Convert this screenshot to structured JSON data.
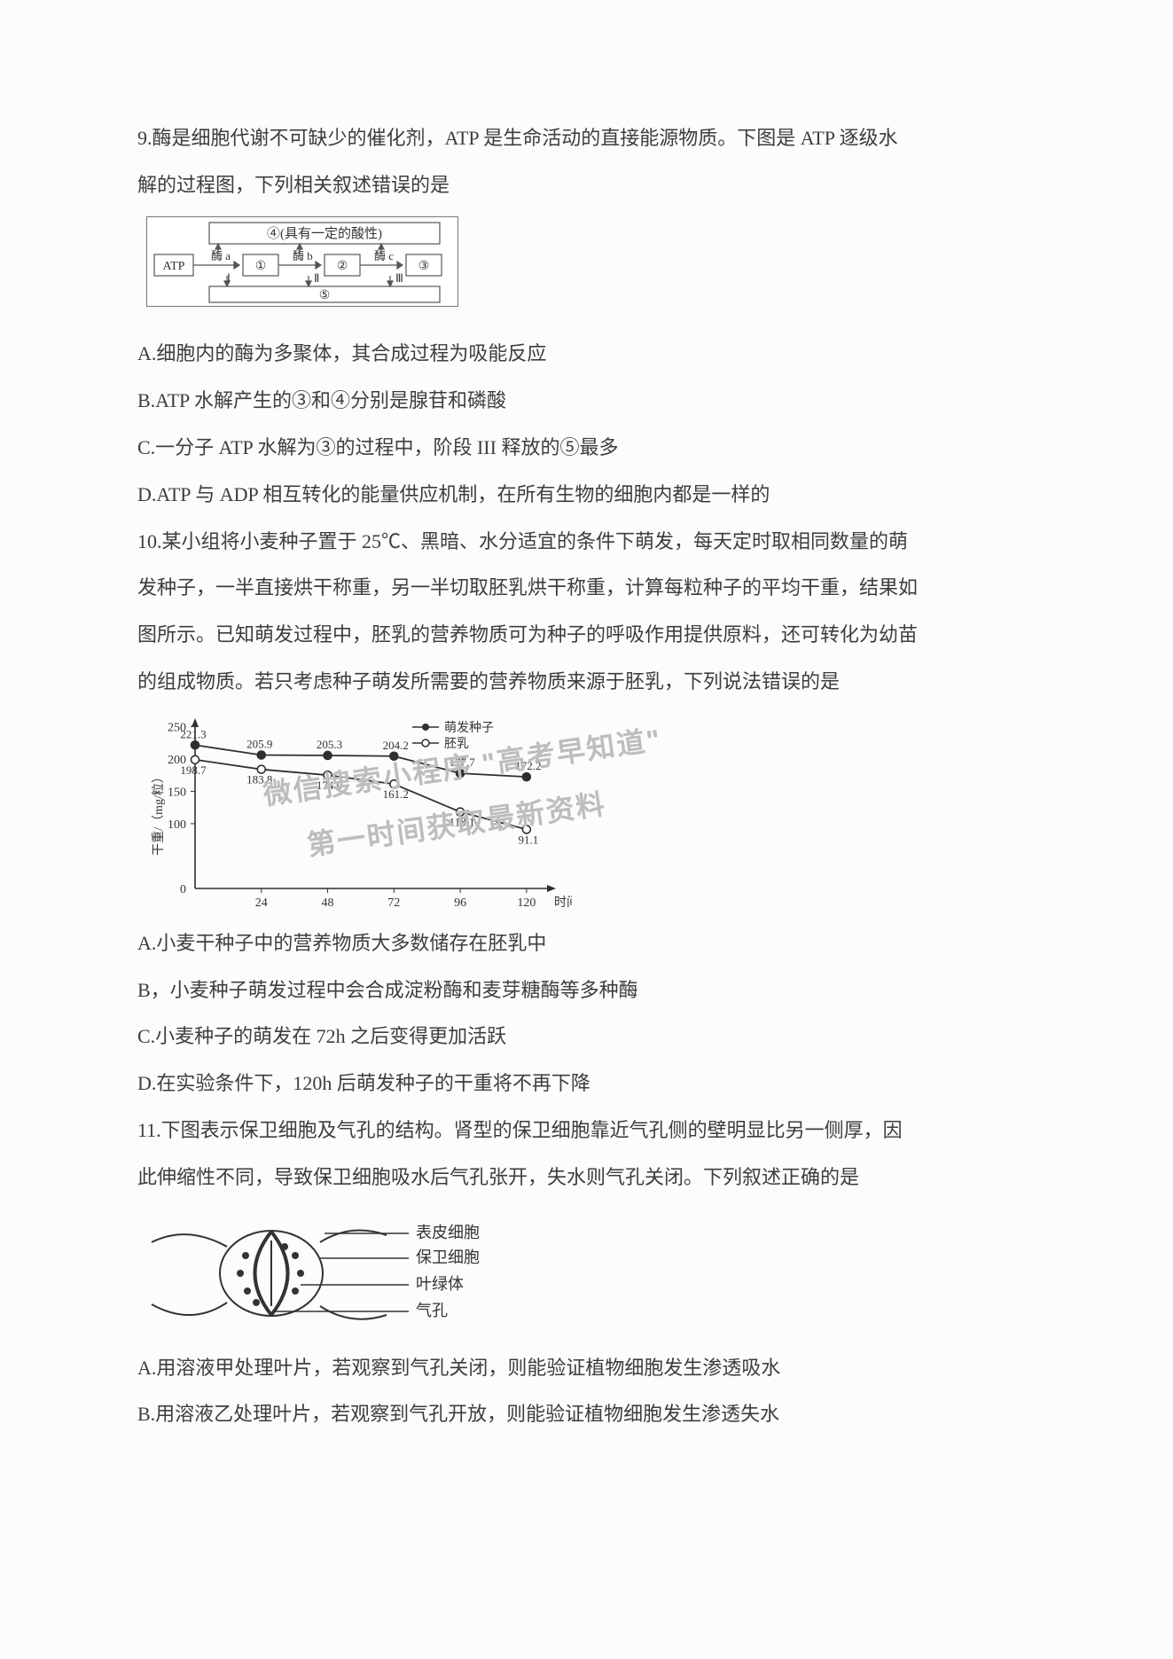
{
  "q9": {
    "stem1": "9.酶是细胞代谢不可缺少的催化剂，ATP 是生命活动的直接能源物质。下图是 ATP 逐级水",
    "stem2": "解的过程图，下列相关叙述错误的是",
    "diagram": {
      "top_box": "④(具有一定的酸性)",
      "atp": "ATP",
      "enzyme_a": "酶 a",
      "enzyme_b": "酶 b",
      "enzyme_c": "酶 c",
      "n1": "①",
      "n2": "②",
      "n3": "③",
      "r1": "Ⅰ",
      "r2": "Ⅱ",
      "r3": "Ⅲ",
      "bottom": "⑤"
    },
    "optA": "A.细胞内的酶为多聚体，其合成过程为吸能反应",
    "optB": "B.ATP 水解产生的③和④分别是腺苷和磷酸",
    "optC": "C.一分子 ATP 水解为③的过程中，阶段 III 释放的⑤最多",
    "optD": "D.ATP 与 ADP 相互转化的能量供应机制，在所有生物的细胞内都是一样的"
  },
  "q10": {
    "stem1": "10.某小组将小麦种子置于 25℃、黑暗、水分适宜的条件下萌发，每天定时取相同数量的萌",
    "stem2": "发种子，一半直接烘干称重，另一半切取胚乳烘干称重，计算每粒种子的平均干重，结果如",
    "stem3": "图所示。已知萌发过程中，胚乳的营养物质可为种子的呼吸作用提供原料，还可转化为幼苗",
    "stem4": "的组成物质。若只考虑种子萌发所需要的营养物质来源于胚乳，下列说法错误的是",
    "chart": {
      "ylabel": "干重/（mg/粒）",
      "xlabel": "时间/h",
      "legend_top": "萌发种子",
      "legend_bottom": "胚乳",
      "y_ticks": [
        250,
        200,
        150,
        100,
        0
      ],
      "x_ticks": [
        0,
        24,
        48,
        72,
        96,
        120
      ],
      "xlim": [
        0,
        130
      ],
      "ylim": [
        0,
        260
      ],
      "series_seed": {
        "marker": "filled-circle",
        "color": "#2f2f2f",
        "points": [
          [
            0,
            221.3
          ],
          [
            24,
            205.9
          ],
          [
            48,
            205.3
          ],
          [
            72,
            204.2
          ],
          [
            96,
            177.7
          ],
          [
            120,
            172.2
          ]
        ],
        "labels": [
          "221.3",
          "205.9",
          "205.3",
          "204.2",
          "177.7",
          "172.2"
        ]
      },
      "series_endo": {
        "marker": "open-circle",
        "color": "#2f2f2f",
        "points": [
          [
            0,
            198.7
          ],
          [
            24,
            183.8
          ],
          [
            48,
            174.9
          ],
          [
            72,
            161.2
          ],
          [
            96,
            118.1
          ],
          [
            120,
            91.1
          ]
        ],
        "labels": [
          "198.7",
          "183.8",
          "174.9",
          "161.2",
          "118.1",
          "91.1"
        ]
      },
      "axis_color": "#2f2f2f",
      "font_size_labels": 13,
      "font_size_axis": 14
    },
    "optA": "A.小麦干种子中的营养物质大多数储存在胚乳中",
    "optB": "B，小麦种子萌发过程中会合成淀粉酶和麦芽糖酶等多种酶",
    "optC": "C.小麦种子的萌发在 72h 之后变得更加活跃",
    "optD": "D.在实验条件下，120h 后萌发种子的干重将不再下降"
  },
  "q11": {
    "stem1": "11.下图表示保卫细胞及气孔的结构。肾型的保卫细胞靠近气孔侧的壁明显比另一侧厚，因",
    "stem2": "此伸缩性不同，导致保卫细胞吸水后气孔张开，失水则气孔关闭。下列叙述正确的是",
    "labels": {
      "l1": "表皮细胞",
      "l2": "保卫细胞",
      "l3": "叶绿体",
      "l4": "气孔"
    },
    "optA": "A.用溶液甲处理叶片，若观察到气孔关闭，则能验证植物细胞发生渗透吸水",
    "optB": "B.用溶液乙处理叶片，若观察到气孔开放，则能验证植物细胞发生渗透失水"
  },
  "watermark": {
    "line1": "微信搜索小程序 \"高考早知道\"",
    "line2": "第一时间获取最新资料"
  }
}
